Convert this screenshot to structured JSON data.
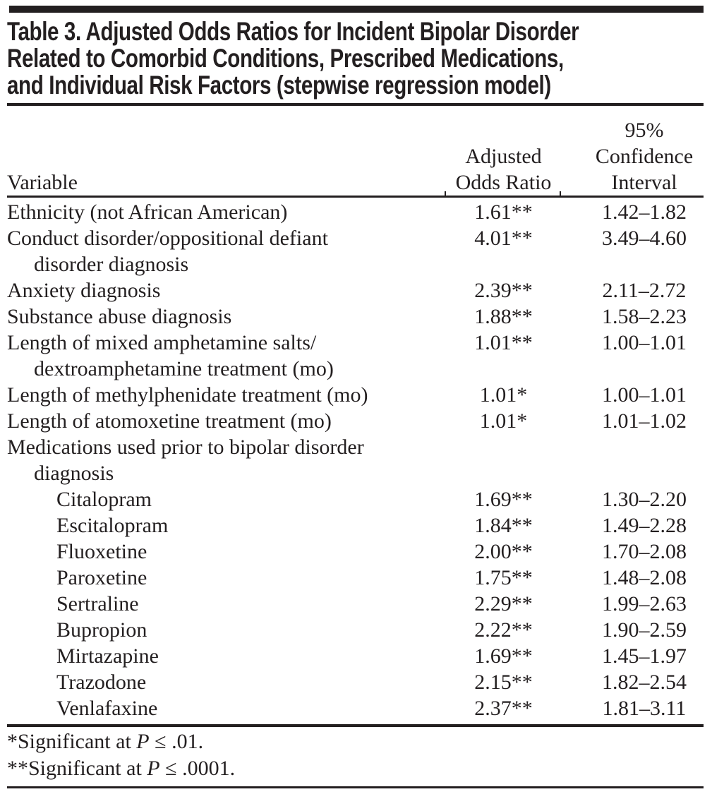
{
  "table": {
    "title_lines": [
      "Table 3. Adjusted Odds Ratios for Incident Bipolar Disorder",
      "Related to Comorbid Conditions, Prescribed Medications,",
      "and Individual Risk Factors (stepwise regression model)"
    ],
    "columns": {
      "variable": "Variable",
      "aor_lines": [
        "Adjusted",
        "Odds Ratio"
      ],
      "ci_lines": [
        "95%",
        "Confidence",
        "Interval"
      ]
    },
    "rows": [
      {
        "lines": [
          "Ethnicity (not African American)"
        ],
        "indent": 0,
        "aor": "1.61**",
        "ci": "1.42–1.82"
      },
      {
        "lines": [
          "Conduct disorder/oppositional defiant",
          "disorder diagnosis"
        ],
        "indent": 0,
        "aor": "4.01**",
        "ci": "3.49–4.60"
      },
      {
        "lines": [
          "Anxiety diagnosis"
        ],
        "indent": 0,
        "aor": "2.39**",
        "ci": "2.11–2.72"
      },
      {
        "lines": [
          "Substance abuse diagnosis"
        ],
        "indent": 0,
        "aor": "1.88**",
        "ci": "1.58–2.23"
      },
      {
        "lines": [
          "Length of mixed amphetamine salts/",
          "dextroamphetamine treatment (mo)"
        ],
        "indent": 0,
        "aor": "1.01**",
        "ci": "1.00–1.01"
      },
      {
        "lines": [
          "Length of methylphenidate treatment (mo)"
        ],
        "indent": 0,
        "aor": "1.01*",
        "ci": "1.00–1.01"
      },
      {
        "lines": [
          "Length of atomoxetine treatment (mo)"
        ],
        "indent": 0,
        "aor": "1.01*",
        "ci": "1.01–1.02"
      },
      {
        "lines": [
          "Medications used prior to bipolar disorder",
          "diagnosis"
        ],
        "indent": 0,
        "aor": "",
        "ci": ""
      },
      {
        "lines": [
          "Citalopram"
        ],
        "indent": 1,
        "aor": "1.69**",
        "ci": "1.30–2.20"
      },
      {
        "lines": [
          "Escitalopram"
        ],
        "indent": 1,
        "aor": "1.84**",
        "ci": "1.49–2.28"
      },
      {
        "lines": [
          "Fluoxetine"
        ],
        "indent": 1,
        "aor": "2.00**",
        "ci": "1.70–2.08"
      },
      {
        "lines": [
          "Paroxetine"
        ],
        "indent": 1,
        "aor": "1.75**",
        "ci": "1.48–2.08"
      },
      {
        "lines": [
          "Sertraline"
        ],
        "indent": 1,
        "aor": "2.29**",
        "ci": "1.99–2.63"
      },
      {
        "lines": [
          "Bupropion"
        ],
        "indent": 1,
        "aor": "2.22**",
        "ci": "1.90–2.59"
      },
      {
        "lines": [
          "Mirtazapine"
        ],
        "indent": 1,
        "aor": "1.69**",
        "ci": "1.45–1.97"
      },
      {
        "lines": [
          "Trazodone"
        ],
        "indent": 1,
        "aor": "2.15**",
        "ci": "1.82–2.54"
      },
      {
        "lines": [
          "Venlafaxine"
        ],
        "indent": 1,
        "aor": "2.37**",
        "ci": "1.81–3.11"
      }
    ],
    "footnotes": [
      {
        "pre": "*Significant at ",
        "p": "P",
        "post": " ≤ .01."
      },
      {
        "pre": "**Significant at ",
        "p": "P",
        "post": " ≤ .0001."
      }
    ],
    "colors": {
      "text": "#231f20",
      "rule": "#231f20",
      "background": "#ffffff"
    }
  }
}
